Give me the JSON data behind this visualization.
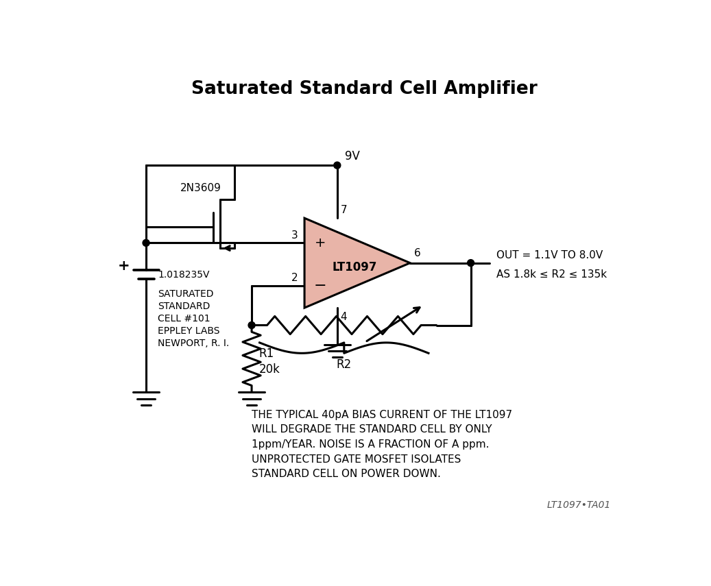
{
  "title": "Saturated Standard Cell Amplifier",
  "background_color": "#ffffff",
  "line_color": "#000000",
  "op_amp_fill": "#e8b4a8",
  "op_amp_stroke": "#000000",
  "title_fontsize": 19,
  "label_fontsize": 12,
  "small_fontsize": 11,
  "note_fontsize": 11,
  "ref_text": "LT1097•TA01",
  "out_text1": "OUT = 1.1V TO 8.0V",
  "out_text2": "AS 1.8k ≤ R2 ≤ 135k",
  "note_lines": [
    "THE TYPICAL 40pA BIAS CURRENT OF THE LT1097",
    "WILL DEGRADE THE STANDARD CELL BY ONLY",
    "1ppm/YEAR. NOISE IS A FRACTION OF A ppm.",
    "UNPROTECTED GATE MOSFET ISOLATES",
    "STANDARD CELL ON POWER DOWN."
  ],
  "cell_label": "SATURATED\nSTANDARD\nCELL #101\nEPPLEY LABS\nNEWPORT, R. I.",
  "voltage_label": "1.018235V",
  "r1_label1": "R1",
  "r1_label2": "20k",
  "r2_label": "R2",
  "mosfet_label": "2N3609",
  "vplus_label": "9V",
  "lw": 2.2
}
